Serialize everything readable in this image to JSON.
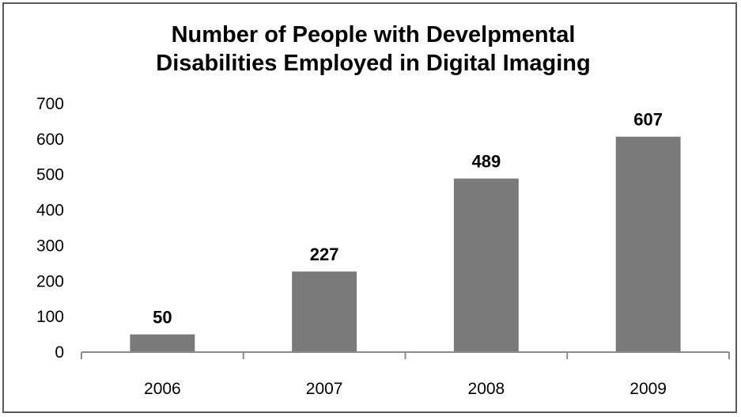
{
  "chart_data": {
    "type": "bar",
    "title": [
      "Number of People with Develpmental",
      "Disabilities Employed in Digital Imaging"
    ],
    "categories": [
      "2006",
      "2007",
      "2008",
      "2009"
    ],
    "values": [
      50,
      227,
      489,
      607
    ],
    "data_labels": [
      "50",
      "227",
      "489",
      "607"
    ],
    "xlabel": "",
    "ylabel": "",
    "ylim": [
      0,
      700
    ],
    "yticks": [
      "0",
      "100",
      "200",
      "300",
      "400",
      "500",
      "600",
      "700"
    ],
    "grid": false,
    "legend": "none",
    "bar_color": "#7a7a7a",
    "axis_color": "#8c8c8c"
  }
}
